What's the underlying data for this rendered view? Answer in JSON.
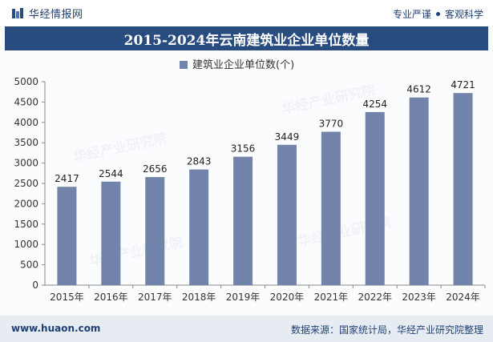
{
  "header": {
    "brand": "华经情报网",
    "tagline_left": "专业严谨",
    "tagline_right": "客观科学"
  },
  "title": "2015-2024年云南建筑业企业单位数量",
  "footer": {
    "url": "www.huaon.com",
    "source": "数据来源：国家统计局，华经产业研究院整理"
  },
  "watermark": "华经产业研究院",
  "colors": {
    "title_bg": "#284b80",
    "bar": "#7284a9",
    "text_dark": "#1f3f73"
  },
  "chart_data": {
    "type": "bar",
    "categories": [
      "2015年",
      "2016年",
      "2017年",
      "2018年",
      "2019年",
      "2020年",
      "2021年",
      "2022年",
      "2023年",
      "2024年"
    ],
    "series": [
      {
        "name": "建筑业企业单位数(个)",
        "values": [
          2417,
          2544,
          2656,
          2843,
          3156,
          3449,
          3770,
          4254,
          4612,
          4721
        ]
      }
    ],
    "yticks": [
      0,
      500,
      1000,
      1500,
      2000,
      2500,
      3000,
      3500,
      4000,
      4500,
      5000
    ],
    "ylim": [
      0,
      5000
    ],
    "legend_position": "top-center",
    "grid": false
  }
}
